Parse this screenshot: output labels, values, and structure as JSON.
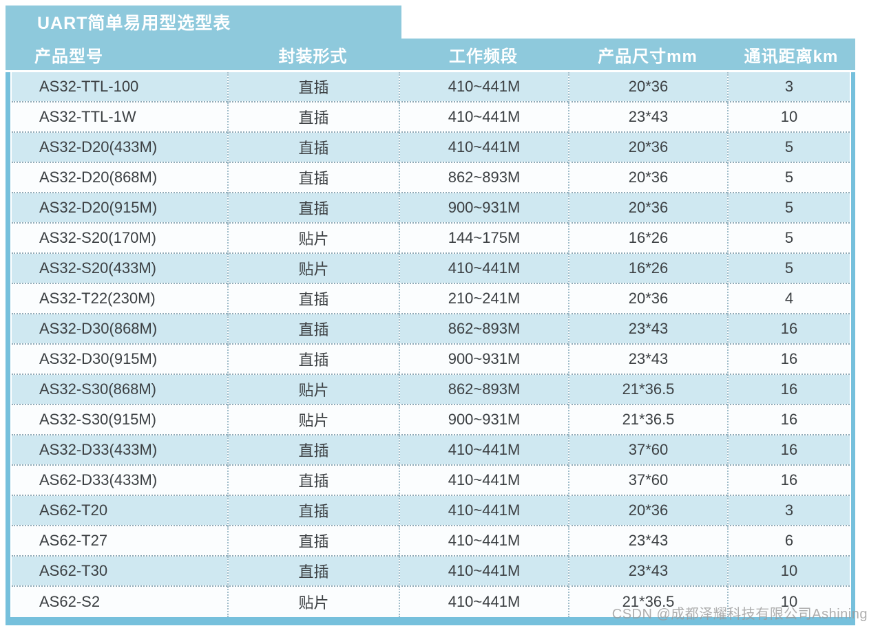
{
  "page": {
    "watermark": "CSDN @成都泽耀科技有限公司Ashining"
  },
  "colors": {
    "header_blue": "#8ec9dc",
    "frame_border_blue": "#76c0dc",
    "row_blue": "#cfe8f1",
    "row_white": "#fbfdfe",
    "dotted_separator": "#8fa9b6",
    "body_text": "#3c4043",
    "header_text": "#ffffff",
    "watermark_gray": "#9b9b9b"
  },
  "chart_data": {
    "type": "table",
    "title": "UART简单易用型选型表",
    "columns": [
      "产品型号",
      "封装形式",
      "工作频段",
      "产品尺寸mm",
      "通讯距离km"
    ],
    "rows": [
      [
        "AS32-TTL-100",
        "直插",
        "410~441M",
        "20*36",
        "3"
      ],
      [
        "AS32-TTL-1W",
        "直插",
        "410~441M",
        "23*43",
        "10"
      ],
      [
        "AS32-D20(433M)",
        "直插",
        "410~441M",
        "20*36",
        "5"
      ],
      [
        "AS32-D20(868M)",
        "直插",
        "862~893M",
        "20*36",
        "5"
      ],
      [
        "AS32-D20(915M)",
        "直插",
        "900~931M",
        "20*36",
        "5"
      ],
      [
        "AS32-S20(170M)",
        "贴片",
        "144~175M",
        "16*26",
        "5"
      ],
      [
        "AS32-S20(433M)",
        "贴片",
        "410~441M",
        "16*26",
        "5"
      ],
      [
        "AS32-T22(230M)",
        "直插",
        "210~241M",
        "20*36",
        "4"
      ],
      [
        "AS32-D30(868M)",
        "直插",
        "862~893M",
        "23*43",
        "16"
      ],
      [
        "AS32-D30(915M)",
        "直插",
        "900~931M",
        "23*43",
        "16"
      ],
      [
        "AS32-S30(868M)",
        "贴片",
        "862~893M",
        "21*36.5",
        "16"
      ],
      [
        "AS32-S30(915M)",
        "贴片",
        "900~931M",
        "21*36.5",
        "16"
      ],
      [
        "AS32-D33(433M)",
        "直插",
        "410~441M",
        "37*60",
        "16"
      ],
      [
        "AS62-D33(433M)",
        "直插",
        "410~441M",
        "37*60",
        "16"
      ],
      [
        "AS62-T20",
        "直插",
        "410~441M",
        "20*36",
        "3"
      ],
      [
        "AS62-T27",
        "直插",
        "410~441M",
        "23*43",
        "6"
      ],
      [
        "AS62-T30",
        "直插",
        "410~441M",
        "23*43",
        "10"
      ],
      [
        "AS62-S2",
        "贴片",
        "410~441M",
        "21*36.5",
        "10"
      ]
    ]
  }
}
